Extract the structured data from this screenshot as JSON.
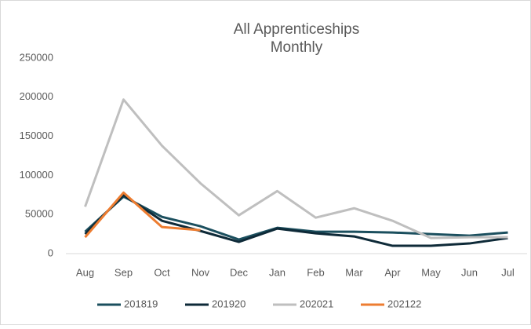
{
  "chart_data": {
    "type": "line",
    "title": "All Apprenticeships",
    "subtitle": "Monthly",
    "categories": [
      "Aug",
      "Sep",
      "Oct",
      "Nov",
      "Dec",
      "Jan",
      "Feb",
      "Mar",
      "Apr",
      "May",
      "Jun",
      "Jul"
    ],
    "series": [
      {
        "name": "201819",
        "color": "#1b4f5e",
        "values": [
          28000,
          73000,
          47000,
          35000,
          18000,
          33000,
          28000,
          28000,
          27000,
          25000,
          23000,
          27000
        ]
      },
      {
        "name": "201920",
        "color": "#0e2a38",
        "values": [
          25000,
          75000,
          42000,
          29000,
          15000,
          32000,
          26000,
          22000,
          10000,
          10000,
          13000,
          20000
        ]
      },
      {
        "name": "202021",
        "color": "#bfbfbf",
        "values": [
          60000,
          197000,
          138000,
          90000,
          49000,
          80000,
          46000,
          58000,
          42000,
          20000,
          21000,
          21000
        ]
      },
      {
        "name": "202122",
        "color": "#ed7d31",
        "values": [
          21000,
          78000,
          34000,
          30000,
          null,
          null,
          null,
          null,
          null,
          null,
          null,
          null
        ]
      }
    ],
    "ylim": [
      0,
      250000
    ],
    "yticks": [
      0,
      50000,
      100000,
      150000,
      200000,
      250000
    ],
    "grid": false,
    "legend": "bottom"
  }
}
